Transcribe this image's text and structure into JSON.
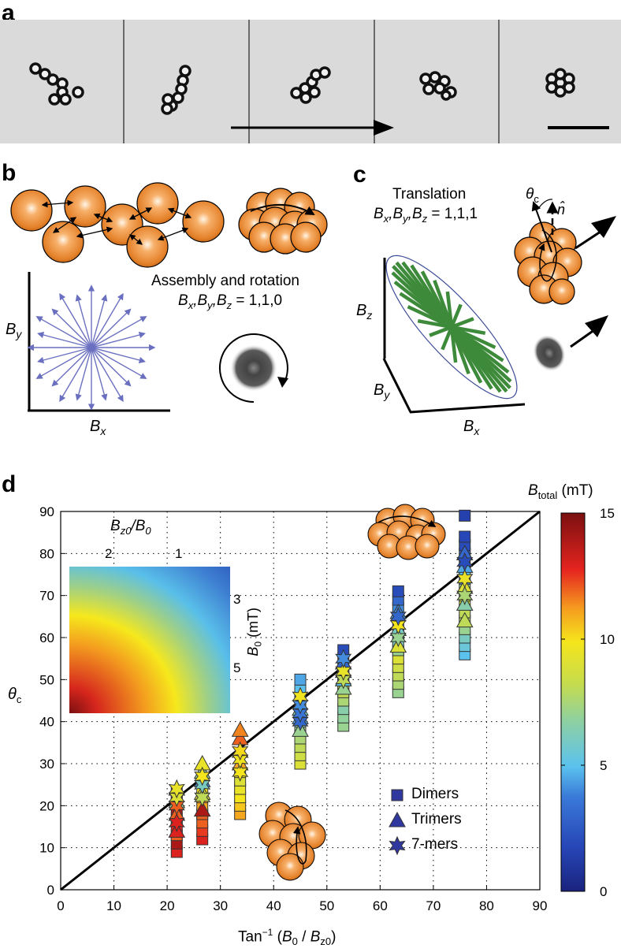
{
  "panels": {
    "a": {
      "label": "a"
    },
    "b": {
      "label": "b",
      "title": "Assembly and rotation",
      "field_sym": "B",
      "subs": [
        "x",
        "y",
        "z"
      ],
      "field_vals": "= 1,1,0",
      "axis_x_sym": "B",
      "axis_x_sub": "x",
      "axis_y_sym": "B",
      "axis_y_sub": "y"
    },
    "c": {
      "label": "c",
      "title": "Translation",
      "field_sym": "B",
      "subs": [
        "x",
        "y",
        "z"
      ],
      "field_vals": "= 1,1,1",
      "theta_sym": "θ",
      "theta_sub": "c",
      "normal_sym": "n̂",
      "axis_x_sym": "B",
      "axis_x_sub": "x",
      "axis_y_sym": "B",
      "axis_y_sub": "y",
      "axis_z_sym": "B",
      "axis_z_sub": "z"
    },
    "d": {
      "label": "d",
      "colorbar": {
        "title_sym": "B",
        "title_sub": "total",
        "title_unit": "(mT)",
        "ticks": [
          "15",
          "10",
          "5",
          "0"
        ],
        "min": 0,
        "max": 15
      },
      "inset": {
        "title_num": "B",
        "title_num_sub": "z0",
        "title_den": "/B",
        "title_den_sub": "0",
        "top_ticks": [
          "2",
          "1"
        ],
        "right_ticks": [
          "3",
          "5"
        ],
        "ylabel_sym": "B",
        "ylabel_sub": "0",
        "ylabel_unit": "(mT)"
      },
      "legend": [
        {
          "marker": "square",
          "label": "Dimers"
        },
        {
          "marker": "triangle",
          "label": "Trimers"
        },
        {
          "marker": "star",
          "label": "7-mers"
        }
      ]
    }
  },
  "chart_data": {
    "type": "scatter",
    "title": "",
    "xlabel": "Tan⁻¹ (B₀ / Bz0)",
    "xlabel_parts": {
      "pre": "Tan",
      "sup": "−1",
      "mid": " (",
      "b0": "B",
      "b0_sub": "0",
      "slash": " / ",
      "bz": "B",
      "bz_sub": "z0",
      "post": ")"
    },
    "ylabel": "θc",
    "ylabel_parts": {
      "sym": "θ",
      "sub": "c"
    },
    "xlim": [
      0,
      90
    ],
    "ylim": [
      0,
      90
    ],
    "xticks": [
      0,
      10,
      20,
      30,
      40,
      50,
      60,
      70,
      80,
      90
    ],
    "yticks": [
      0,
      10,
      20,
      30,
      40,
      50,
      60,
      70,
      80,
      90
    ],
    "grid": true,
    "reference_line": {
      "x": [
        0,
        90
      ],
      "y": [
        0,
        90
      ],
      "color": "#000000"
    },
    "color_variable": "B_total (mT)",
    "columns": [
      {
        "x": 21.8,
        "series": "Dimers",
        "y": [
          9,
          11,
          13,
          15,
          17,
          19,
          21,
          23
        ],
        "c": [
          13,
          14,
          12,
          13,
          11,
          14,
          12,
          13
        ]
      },
      {
        "x": 21.8,
        "series": "Trimers",
        "y": [
          14,
          18,
          21,
          24
        ],
        "c": [
          13,
          12,
          7,
          9
        ]
      },
      {
        "x": 21.8,
        "series": "7-mers",
        "y": [
          16,
          20,
          22,
          24
        ],
        "c": [
          13,
          12,
          9,
          9.5
        ]
      },
      {
        "x": 26.6,
        "series": "Dimers",
        "y": [
          12,
          14,
          16,
          18,
          20,
          22,
          24
        ],
        "c": [
          13,
          12.5,
          12,
          12,
          11,
          11,
          10
        ]
      },
      {
        "x": 26.6,
        "series": "Trimers",
        "y": [
          19,
          23,
          26,
          28,
          30
        ],
        "c": [
          14,
          9,
          4,
          7,
          9.5
        ]
      },
      {
        "x": 26.6,
        "series": "7-mers",
        "y": [
          22,
          25,
          27
        ],
        "c": [
          8,
          6,
          10
        ]
      },
      {
        "x": 33.7,
        "series": "Dimers",
        "y": [
          18,
          20,
          22,
          24,
          26,
          28
        ],
        "c": [
          11,
          10.5,
          10,
          9.5,
          9,
          10
        ]
      },
      {
        "x": 33.7,
        "series": "Trimers",
        "y": [
          30,
          33,
          36,
          38
        ],
        "c": [
          11,
          12,
          12,
          11.5
        ]
      },
      {
        "x": 33.7,
        "series": "7-mers",
        "y": [
          28,
          31,
          33
        ],
        "c": [
          10,
          9.8,
          10.2
        ]
      },
      {
        "x": 45.0,
        "series": "Dimers",
        "y": [
          30,
          32,
          34,
          36,
          38,
          40,
          42,
          44,
          46,
          48,
          50
        ],
        "c": [
          9,
          8.5,
          8,
          7.5,
          7,
          6.5,
          7.5,
          8,
          5.5,
          5,
          4.5
        ]
      },
      {
        "x": 45.0,
        "series": "Trimers",
        "y": [
          38,
          41,
          43
        ],
        "c": [
          7,
          4.5,
          6
        ]
      },
      {
        "x": 45.0,
        "series": "7-mers",
        "y": [
          40,
          42,
          44,
          46
        ],
        "c": [
          3,
          3.5,
          4,
          9.8
        ]
      },
      {
        "x": 53.1,
        "series": "Dimers",
        "y": [
          39,
          41,
          43,
          45,
          47,
          49,
          51,
          53,
          55,
          57
        ],
        "c": [
          7,
          6.8,
          6.5,
          7.5,
          8,
          8.5,
          7,
          4.5,
          3,
          2
        ]
      },
      {
        "x": 53.1,
        "series": "Trimers",
        "y": [
          48,
          50,
          52,
          54
        ],
        "c": [
          7,
          5,
          6,
          3
        ]
      },
      {
        "x": 53.1,
        "series": "7-mers",
        "y": [
          50,
          52,
          55
        ],
        "c": [
          8,
          9.5,
          4
        ]
      },
      {
        "x": 63.4,
        "series": "Dimers",
        "y": [
          47,
          49,
          51,
          53,
          55,
          57,
          59,
          61,
          63,
          65,
          67,
          69,
          71
        ],
        "c": [
          7,
          7.5,
          8,
          8.5,
          9,
          7,
          6,
          4.5,
          3.5,
          5.5,
          4,
          3,
          2
        ]
      },
      {
        "x": 63.4,
        "series": "Trimers",
        "y": [
          58,
          62,
          66
        ],
        "c": [
          9,
          6,
          4
        ]
      },
      {
        "x": 63.4,
        "series": "7-mers",
        "y": [
          60,
          63,
          65
        ],
        "c": [
          7,
          10,
          3
        ]
      },
      {
        "x": 75.9,
        "series": "Dimers",
        "y": [
          56,
          58,
          60,
          62,
          64,
          66,
          68,
          70,
          72,
          74,
          76,
          78,
          80,
          82,
          84,
          89
        ],
        "c": [
          5,
          5.5,
          6,
          7,
          7.5,
          8,
          9,
          8.5,
          7,
          4,
          5,
          3,
          2.5,
          2,
          1.8,
          1.5
        ]
      },
      {
        "x": 75.9,
        "series": "Trimers",
        "y": [
          64,
          68,
          72,
          77,
          80
        ],
        "c": [
          8,
          6.5,
          9,
          4.5,
          3
        ]
      },
      {
        "x": 75.9,
        "series": "7-mers",
        "y": [
          70,
          74,
          78
        ],
        "c": [
          7.5,
          9.5,
          2
        ]
      }
    ]
  }
}
